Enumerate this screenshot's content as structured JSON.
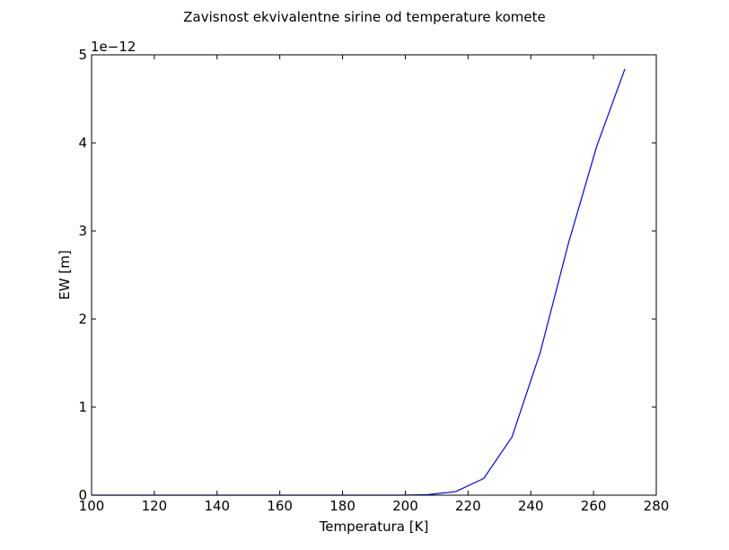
{
  "chart_data": {
    "type": "line",
    "title": "Zavisnost ekvivalentne sirine od temperature komete",
    "xlabel": "Temperatura [K]",
    "ylabel": "EW [m]",
    "y_offset_label": "1e−12",
    "xlim": [
      100,
      280
    ],
    "ylim": [
      0,
      5
    ],
    "x_ticks": [
      100,
      120,
      140,
      160,
      180,
      200,
      220,
      240,
      260,
      280
    ],
    "y_ticks": [
      0,
      1,
      2,
      3,
      4,
      5
    ],
    "x_tick_labels": [
      "100",
      "120",
      "140",
      "160",
      "180",
      "200",
      "220",
      "240",
      "260",
      "280"
    ],
    "y_tick_labels": [
      "0",
      "1",
      "2",
      "3",
      "4",
      "5"
    ],
    "grid": false,
    "series": [
      {
        "color": "#0000ff",
        "x": [
          100,
          109,
          118,
          127,
          136,
          145,
          154,
          163,
          172,
          181,
          190,
          199,
          207,
          216,
          225,
          234,
          243,
          252,
          261,
          270
        ],
        "y": [
          0,
          0,
          0,
          0,
          0,
          0,
          0,
          0,
          0,
          0,
          0,
          0,
          0.005,
          0.04,
          0.19,
          0.66,
          1.62,
          2.86,
          3.96,
          4.84
        ]
      }
    ]
  }
}
